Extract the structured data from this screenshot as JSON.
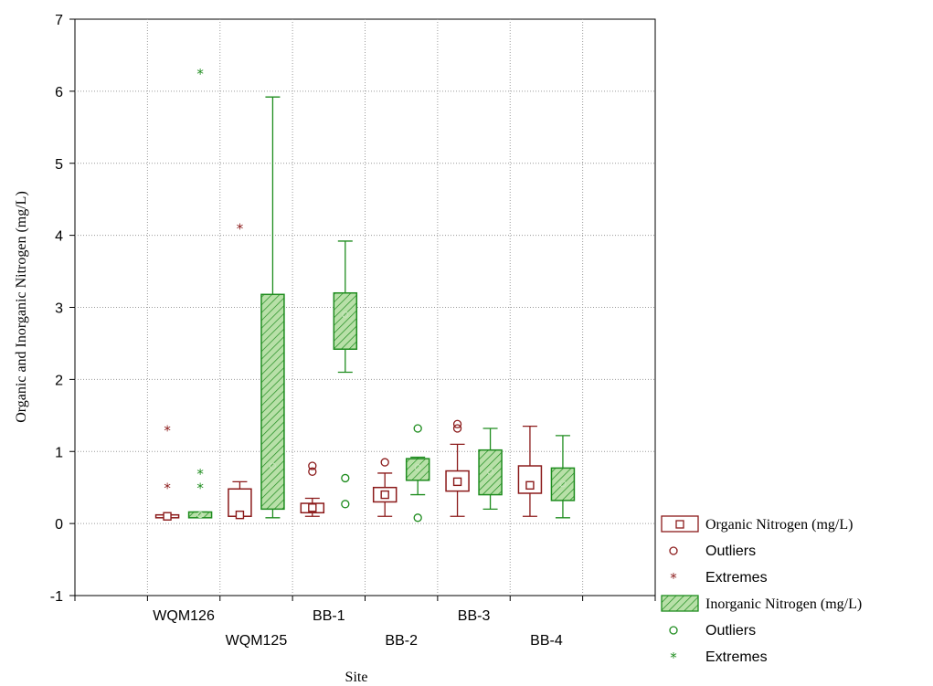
{
  "chart_data": {
    "type": "boxplot",
    "title": "",
    "xlabel": "Site",
    "ylabel": "Organic and Inorganic Nitrogen (mg/L)",
    "ylim": [
      -1,
      7
    ],
    "yticks": [
      "-1",
      "0",
      "1",
      "2",
      "3",
      "4",
      "5",
      "6",
      "7"
    ],
    "grid": true,
    "legend_position": "bottom-right outside",
    "categories": [
      "WQM126",
      "WQM125",
      "BB-1",
      "BB-2",
      "BB-3",
      "BB-4"
    ],
    "series": [
      {
        "name": "Organic Nitrogen (mg/L)",
        "color": "#8b1a1a",
        "hatched": false,
        "boxes": [
          {
            "category": "WQM126",
            "median": 0.1,
            "q1": 0.08,
            "q3": 0.12,
            "min": 0.08,
            "max": 0.12,
            "outliers": [],
            "extremes": [
              1.3,
              0.5
            ]
          },
          {
            "category": "WQM125",
            "median": 0.12,
            "q1": 0.1,
            "q3": 0.48,
            "min": 0.1,
            "max": 0.58,
            "outliers": [],
            "extremes": [
              4.1
            ]
          },
          {
            "category": "BB-1",
            "median": 0.22,
            "q1": 0.15,
            "q3": 0.28,
            "min": 0.1,
            "max": 0.35,
            "outliers": [
              0.8,
              0.72
            ],
            "extremes": []
          },
          {
            "category": "BB-2",
            "median": 0.4,
            "q1": 0.3,
            "q3": 0.5,
            "min": 0.1,
            "max": 0.7,
            "outliers": [
              0.85
            ],
            "extremes": []
          },
          {
            "category": "BB-3",
            "median": 0.58,
            "q1": 0.45,
            "q3": 0.73,
            "min": 0.1,
            "max": 1.1,
            "outliers": [
              1.38,
              1.32
            ],
            "extremes": []
          },
          {
            "category": "BB-4",
            "median": 0.53,
            "q1": 0.42,
            "q3": 0.8,
            "min": 0.1,
            "max": 1.35,
            "outliers": [],
            "extremes": []
          }
        ]
      },
      {
        "name": "Inorganic Nitrogen (mg/L)",
        "color": "#1e8c1e",
        "hatched": true,
        "boxes": [
          {
            "category": "WQM126",
            "median": 0.12,
            "q1": 0.08,
            "q3": 0.16,
            "min": 0.08,
            "max": 0.16,
            "outliers": [],
            "extremes": [
              6.25,
              0.7,
              0.5
            ]
          },
          {
            "category": "WQM125",
            "median": 0.8,
            "q1": 0.2,
            "q3": 3.18,
            "min": 0.08,
            "max": 5.92,
            "outliers": [],
            "extremes": []
          },
          {
            "category": "BB-1",
            "median": 2.9,
            "q1": 2.42,
            "q3": 3.2,
            "min": 2.1,
            "max": 3.92,
            "outliers": [
              0.63,
              0.27
            ],
            "extremes": []
          },
          {
            "category": "BB-2",
            "median": 0.78,
            "q1": 0.6,
            "q3": 0.9,
            "min": 0.4,
            "max": 0.92,
            "outliers": [
              1.32,
              0.08
            ],
            "extremes": []
          },
          {
            "category": "BB-3",
            "median": 0.72,
            "q1": 0.4,
            "q3": 1.02,
            "min": 0.2,
            "max": 1.32,
            "outliers": [],
            "extremes": []
          },
          {
            "category": "BB-4",
            "median": 0.55,
            "q1": 0.32,
            "q3": 0.77,
            "min": 0.08,
            "max": 1.22,
            "outliers": [],
            "extremes": []
          }
        ]
      }
    ],
    "legend": [
      {
        "label": "Organic Nitrogen (mg/L)",
        "kind": "box",
        "series": 0
      },
      {
        "label": "Outliers",
        "kind": "outlier",
        "series": 0
      },
      {
        "label": "Extremes",
        "kind": "extreme",
        "series": 0
      },
      {
        "label": "Inorganic Nitrogen (mg/L)",
        "kind": "box",
        "series": 1
      },
      {
        "label": "Outliers",
        "kind": "outlier",
        "series": 1
      },
      {
        "label": "Extremes",
        "kind": "extreme",
        "series": 1
      }
    ]
  }
}
